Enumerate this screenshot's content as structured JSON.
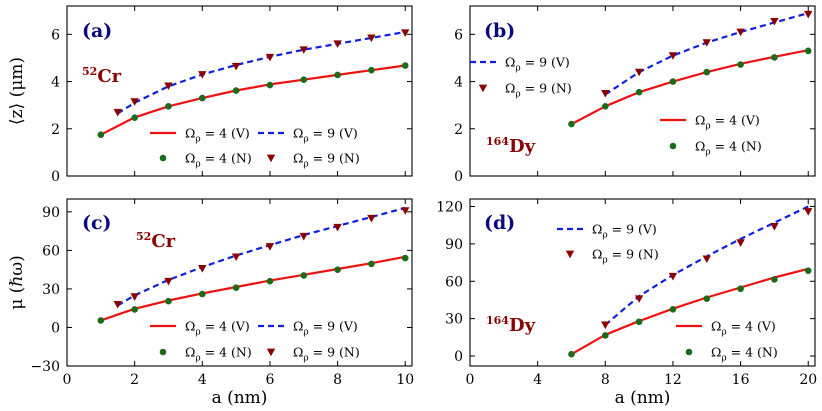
{
  "figure": {
    "shared_xlabel": "a (nm)"
  },
  "colors": {
    "fit_small": "#ee1111",
    "fit_large": "#1020dd",
    "num_small": "#1a6b1a",
    "num_large": "#8b0000",
    "tag": "#0a0a80",
    "species": "#8b0000"
  },
  "chart_data": [
    {
      "id": "a",
      "type": "line",
      "tag": "(a)",
      "species_mass": "52",
      "species_symbol": "Cr",
      "ylabel": "⟨z⟩ (μm)",
      "xlabel": "",
      "xlim": [
        0,
        10.2
      ],
      "ylim": [
        0,
        7.2
      ],
      "xticks": [
        0,
        2,
        4,
        6,
        8,
        10
      ],
      "yticks": [
        0,
        2,
        4,
        6
      ],
      "show_xticklabels": false,
      "series": [
        {
          "key": "v4",
          "kind": "fit",
          "name": "Ω_ρ = 4 (V)",
          "x": [
            1,
            2,
            3,
            4,
            5,
            6,
            7,
            8,
            9,
            10
          ],
          "values": [
            1.75,
            2.48,
            2.95,
            3.3,
            3.62,
            3.88,
            4.08,
            4.28,
            4.48,
            4.68
          ]
        },
        {
          "key": "v9",
          "kind": "fit",
          "name": "Ω_ρ = 9 (V)",
          "x": [
            1.5,
            2,
            3,
            4,
            5,
            6,
            7,
            8,
            9,
            10
          ],
          "values": [
            2.65,
            3.1,
            3.8,
            4.3,
            4.7,
            5.05,
            5.35,
            5.6,
            5.85,
            6.1
          ]
        },
        {
          "key": "n4",
          "kind": "num",
          "name": "Ω_ρ = 4 (N)",
          "x": [
            1,
            2,
            3,
            4,
            5,
            6,
            7,
            8,
            9,
            10
          ],
          "values": [
            1.75,
            2.47,
            2.95,
            3.3,
            3.62,
            3.85,
            4.08,
            4.28,
            4.48,
            4.68
          ]
        },
        {
          "key": "n9",
          "kind": "num",
          "name": "Ω_ρ = 9 (N)",
          "x": [
            1.5,
            2,
            3,
            4,
            5,
            6,
            7,
            8,
            9,
            10
          ],
          "values": [
            2.7,
            3.15,
            3.82,
            4.3,
            4.65,
            5.03,
            5.35,
            5.6,
            5.85,
            6.07
          ]
        }
      ],
      "legend": [
        [
          "v4",
          "v9"
        ],
        [
          "n4",
          "n9"
        ]
      ],
      "legend_position": "lower-right"
    },
    {
      "id": "b",
      "type": "line",
      "tag": "(b)",
      "species_mass": "164",
      "species_symbol": "Dy",
      "ylabel": "",
      "xlabel": "",
      "xlim": [
        0,
        20.4
      ],
      "ylim": [
        0,
        7.2
      ],
      "xticks": [
        0,
        4,
        8,
        12,
        16,
        20
      ],
      "yticks": [
        0,
        2,
        4,
        6
      ],
      "show_xticklabels": false,
      "series": [
        {
          "key": "v4",
          "kind": "fit",
          "name": "Ω_ρ = 4 (V)",
          "x": [
            6,
            8,
            10,
            12,
            14,
            16,
            18,
            20
          ],
          "values": [
            2.2,
            2.95,
            3.55,
            4.0,
            4.4,
            4.75,
            5.05,
            5.33
          ]
        },
        {
          "key": "v9",
          "kind": "fit",
          "name": "Ω_ρ = 9 (V)",
          "x": [
            8,
            10,
            12,
            14,
            16,
            18,
            20
          ],
          "values": [
            3.45,
            4.4,
            5.1,
            5.65,
            6.1,
            6.5,
            6.9
          ]
        },
        {
          "key": "n4",
          "kind": "num",
          "name": "Ω_ρ = 4 (N)",
          "x": [
            6,
            8,
            10,
            12,
            14,
            16,
            18,
            20
          ],
          "values": [
            2.2,
            2.95,
            3.55,
            4.0,
            4.4,
            4.72,
            5.02,
            5.3
          ]
        },
        {
          "key": "n9",
          "kind": "num",
          "name": "Ω_ρ = 9 (N)",
          "x": [
            8,
            10,
            12,
            14,
            16,
            18,
            20
          ],
          "values": [
            3.5,
            4.4,
            5.1,
            5.65,
            6.1,
            6.55,
            6.85
          ]
        }
      ],
      "legend": [
        [
          "v9"
        ],
        [
          "n9"
        ]
      ],
      "legend2": [
        [
          "v4"
        ],
        [
          "n4"
        ]
      ],
      "legend_position": "upper-left / lower-right"
    },
    {
      "id": "c",
      "type": "line",
      "tag": "(c)",
      "species_mass": "52",
      "species_symbol": "Cr",
      "ylabel": "μ (ℏω)",
      "xlabel": "a (nm)",
      "xlim": [
        0,
        10.2
      ],
      "ylim": [
        -30,
        100
      ],
      "xticks": [
        0,
        2,
        4,
        6,
        8,
        10
      ],
      "yticks": [
        -30,
        0,
        30,
        60,
        90
      ],
      "show_xticklabels": true,
      "series": [
        {
          "key": "v4",
          "kind": "fit",
          "name": "Ω_ρ = 4 (V)",
          "x": [
            1,
            2,
            3,
            4,
            5,
            6,
            7,
            8,
            9,
            10
          ],
          "values": [
            5.5,
            14.5,
            21,
            26.5,
            31.5,
            36.5,
            41,
            45.5,
            50,
            55
          ]
        },
        {
          "key": "v9",
          "kind": "fit",
          "name": "Ω_ρ = 9 (V)",
          "x": [
            1.5,
            2,
            3,
            4,
            5,
            6,
            7,
            8,
            9,
            10
          ],
          "values": [
            17,
            25,
            37,
            47,
            56,
            64,
            72,
            79,
            86,
            93
          ]
        },
        {
          "key": "n4",
          "kind": "num",
          "name": "Ω_ρ = 4 (N)",
          "x": [
            1,
            2,
            3,
            4,
            5,
            6,
            7,
            8,
            9,
            10
          ],
          "values": [
            5.5,
            14,
            20.5,
            26,
            31,
            36,
            40.5,
            45,
            49.5,
            54
          ]
        },
        {
          "key": "n9",
          "kind": "num",
          "name": "Ω_ρ = 9 (N)",
          "x": [
            1.5,
            2,
            3,
            4,
            5,
            6,
            7,
            8,
            9,
            10
          ],
          "values": [
            18,
            24,
            36,
            46,
            55,
            63,
            71,
            78,
            85,
            91
          ]
        }
      ],
      "legend": [
        [
          "v4",
          "v9"
        ],
        [
          "n4",
          "n9"
        ]
      ],
      "legend_position": "lower-right"
    },
    {
      "id": "d",
      "type": "line",
      "tag": "(d)",
      "species_mass": "164",
      "species_symbol": "Dy",
      "ylabel": "",
      "xlabel": "a (nm)",
      "xlim": [
        0,
        20.4
      ],
      "ylim": [
        -8,
        126
      ],
      "xticks": [
        0,
        4,
        8,
        12,
        16,
        20
      ],
      "yticks": [
        0,
        30,
        60,
        90,
        120
      ],
      "show_xticklabels": true,
      "series": [
        {
          "key": "v4",
          "kind": "fit",
          "name": "Ω_ρ = 4 (V)",
          "x": [
            6,
            8,
            10,
            12,
            14,
            16,
            18,
            20
          ],
          "values": [
            1.5,
            17,
            28,
            38,
            47,
            55,
            63,
            70
          ]
        },
        {
          "key": "v9",
          "kind": "fit",
          "name": "Ω_ρ = 9 (V)",
          "x": [
            8,
            10,
            12,
            14,
            16,
            18,
            20
          ],
          "values": [
            25,
            48,
            65,
            80,
            94,
            107,
            120
          ]
        },
        {
          "key": "n4",
          "kind": "num",
          "name": "Ω_ρ = 4 (N)",
          "x": [
            6,
            8,
            10,
            12,
            14,
            16,
            18,
            20
          ],
          "values": [
            1.5,
            16.5,
            27.5,
            37.5,
            46,
            54,
            61.5,
            68.5
          ]
        },
        {
          "key": "n9",
          "kind": "num",
          "name": "Ω_ρ = 9 (N)",
          "x": [
            8,
            10,
            12,
            14,
            16,
            18,
            20
          ],
          "values": [
            25,
            46,
            64,
            78,
            91,
            104,
            116
          ]
        }
      ],
      "legend": [
        [
          "v9"
        ],
        [
          "n9"
        ]
      ],
      "legend2": [
        [
          "v4"
        ],
        [
          "n4"
        ]
      ],
      "legend_position": "upper-center / lower-right"
    }
  ]
}
